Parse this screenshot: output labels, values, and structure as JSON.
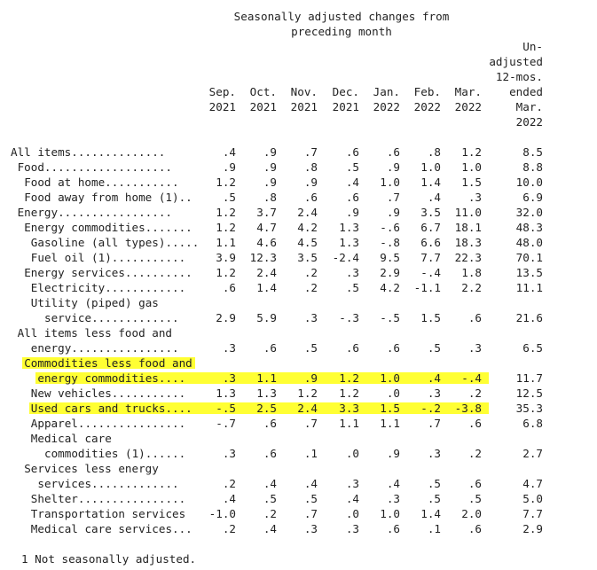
{
  "caption": {
    "line1": "Seasonally adjusted changes from",
    "line2": "preceding month"
  },
  "unadjusted_header": [
    "Un-",
    "adjusted",
    "12-mos.",
    "ended",
    "Mar.",
    "2022"
  ],
  "columns": [
    {
      "month": "Sep.",
      "year": "2021"
    },
    {
      "month": "Oct.",
      "year": "2021"
    },
    {
      "month": "Nov.",
      "year": "2021"
    },
    {
      "month": "Dec.",
      "year": "2021"
    },
    {
      "month": "Jan.",
      "year": "2022"
    },
    {
      "month": "Feb.",
      "year": "2022"
    },
    {
      "month": "Mar.",
      "year": "2022"
    }
  ],
  "highlight_color": "#ffff33",
  "rows": [
    {
      "label": "All items..............",
      "indent": 0,
      "values": [
        ".4",
        ".9",
        ".7",
        ".6",
        ".6",
        ".8",
        "1.2"
      ],
      "unadjusted": "8.5"
    },
    {
      "label": "Food...................",
      "indent": 1,
      "values": [
        ".9",
        ".9",
        ".8",
        ".5",
        ".9",
        "1.0",
        "1.0"
      ],
      "unadjusted": "8.8"
    },
    {
      "label": "Food at home...........",
      "indent": 2,
      "values": [
        "1.2",
        ".9",
        ".9",
        ".4",
        "1.0",
        "1.4",
        "1.5"
      ],
      "unadjusted": "10.0"
    },
    {
      "label": "Food away from home (1)..",
      "indent": 2,
      "values": [
        ".5",
        ".8",
        ".6",
        ".6",
        ".7",
        ".4",
        ".3"
      ],
      "unadjusted": "6.9"
    },
    {
      "label": "Energy.................",
      "indent": 1,
      "values": [
        "1.2",
        "3.7",
        "2.4",
        ".9",
        ".9",
        "3.5",
        "11.0"
      ],
      "unadjusted": "32.0"
    },
    {
      "label": "Energy commodities.......",
      "indent": 2,
      "values": [
        "1.2",
        "4.7",
        "4.2",
        "1.3",
        "-.6",
        "6.7",
        "18.1"
      ],
      "unadjusted": "48.3"
    },
    {
      "label": "Gasoline (all types).....",
      "indent": 3,
      "values": [
        "1.1",
        "4.6",
        "4.5",
        "1.3",
        "-.8",
        "6.6",
        "18.3"
      ],
      "unadjusted": "48.0"
    },
    {
      "label": "Fuel oil (1)...........",
      "indent": 3,
      "values": [
        "3.9",
        "12.3",
        "3.5",
        "-2.4",
        "9.5",
        "7.7",
        "22.3"
      ],
      "unadjusted": "70.1"
    },
    {
      "label": "Energy services..........",
      "indent": 2,
      "values": [
        "1.2",
        "2.4",
        ".2",
        ".3",
        "2.9",
        "-.4",
        "1.8"
      ],
      "unadjusted": "13.5"
    },
    {
      "label": "Electricity............",
      "indent": 3,
      "values": [
        ".6",
        "1.4",
        ".2",
        ".5",
        "4.2",
        "-1.1",
        "2.2"
      ],
      "unadjusted": "11.1"
    },
    {
      "label": "Utility (piped) gas",
      "indent": 3,
      "values": [],
      "unadjusted": ""
    },
    {
      "label": "service.............",
      "indent": 5,
      "values": [
        "2.9",
        "5.9",
        ".3",
        "-.3",
        "-.5",
        "1.5",
        ".6"
      ],
      "unadjusted": "21.6"
    },
    {
      "label": "All items less food and",
      "indent": 1,
      "values": [],
      "unadjusted": ""
    },
    {
      "label": "energy................",
      "indent": 3,
      "values": [
        ".3",
        ".6",
        ".5",
        ".6",
        ".6",
        ".5",
        ".3"
      ],
      "unadjusted": "6.5"
    },
    {
      "label": "Commodities less food and",
      "indent": 2,
      "values": [],
      "unadjusted": "",
      "highlight": "label"
    },
    {
      "label": "energy commodities....",
      "indent": 4,
      "values": [
        ".3",
        "1.1",
        ".9",
        "1.2",
        "1.0",
        ".4",
        "-.4"
      ],
      "unadjusted": "11.7",
      "highlight": "full"
    },
    {
      "label": "New vehicles...........",
      "indent": 3,
      "values": [
        "1.3",
        "1.3",
        "1.2",
        "1.2",
        ".0",
        ".3",
        ".2"
      ],
      "unadjusted": "12.5"
    },
    {
      "label": "Used cars and trucks....",
      "indent": 3,
      "values": [
        "-.5",
        "2.5",
        "2.4",
        "3.3",
        "1.5",
        "-.2",
        "-3.8"
      ],
      "unadjusted": "35.3",
      "highlight": "full"
    },
    {
      "label": "Apparel................",
      "indent": 3,
      "values": [
        "-.7",
        ".6",
        ".7",
        "1.1",
        "1.1",
        ".7",
        ".6"
      ],
      "unadjusted": "6.8"
    },
    {
      "label": "Medical care",
      "indent": 3,
      "values": [],
      "unadjusted": ""
    },
    {
      "label": "commodities (1)......",
      "indent": 5,
      "values": [
        ".3",
        ".6",
        ".1",
        ".0",
        ".9",
        ".3",
        ".2"
      ],
      "unadjusted": "2.7"
    },
    {
      "label": "Services less energy",
      "indent": 2,
      "values": [],
      "unadjusted": ""
    },
    {
      "label": "services.............",
      "indent": 4,
      "values": [
        ".2",
        ".4",
        ".4",
        ".3",
        ".4",
        ".5",
        ".6"
      ],
      "unadjusted": "4.7"
    },
    {
      "label": "Shelter................",
      "indent": 3,
      "values": [
        ".4",
        ".5",
        ".5",
        ".4",
        ".3",
        ".5",
        ".5"
      ],
      "unadjusted": "5.0"
    },
    {
      "label": "Transportation services",
      "indent": 3,
      "values": [
        "-1.0",
        ".2",
        ".7",
        ".0",
        "1.0",
        "1.4",
        "2.0"
      ],
      "unadjusted": "7.7"
    },
    {
      "label": "Medical care services...",
      "indent": 3,
      "values": [
        ".2",
        ".4",
        ".3",
        ".3",
        ".6",
        ".1",
        ".6"
      ],
      "unadjusted": "2.9"
    }
  ],
  "footnote": "1 Not seasonally adjusted."
}
